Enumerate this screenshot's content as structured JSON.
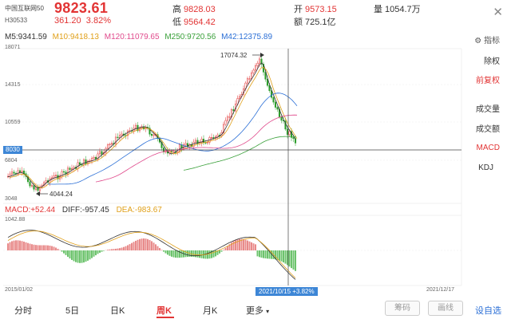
{
  "header": {
    "name": "中国互联网50",
    "code": "H30533",
    "price": "9823.61",
    "change": "361.20",
    "change_pct": "3.82%",
    "high_label": "高",
    "high": "9828.03",
    "low_label": "低",
    "low": "9564.42",
    "open_label": "开",
    "open": "9573.15",
    "amount_label": "额",
    "amount": "725.1亿",
    "volume_label": "量",
    "volume": "1054.7万"
  },
  "ma": {
    "m5": "M5:9341.59",
    "m10": "M10:9418.13",
    "m120": "M120:11079.65",
    "m250": "M250:9720.56",
    "m42": "M42:12375.89",
    "colors": {
      "m5": "#333333",
      "m10": "#e0a01a",
      "m120": "#e04a8c",
      "m250": "#3aa03a",
      "m42": "#2b6fd6"
    }
  },
  "price_axis": {
    "top": "18071",
    "t2": "14315",
    "t3": "10559",
    "t4": "6804",
    "bottom": "3048",
    "crosshair": "8030"
  },
  "annotations": {
    "high": "17074.32",
    "low": "4044.24"
  },
  "macd": {
    "macd": "MACD:+52.44",
    "diff": "DIFF:-957.45",
    "dea": "DEA:-983.67",
    "top": "1042.88",
    "bottom": "-1521.45"
  },
  "dates": {
    "start": "2015/01/02",
    "end": "2021/12/17",
    "crosshair": "2021/10/15  +3.82%"
  },
  "side": {
    "indicator": "指标",
    "items": [
      "除权",
      "前复权",
      "成交量",
      "成交额",
      "MACD",
      "KDJ"
    ]
  },
  "tabs": [
    "分时",
    "5日",
    "日K",
    "周K",
    "月K",
    "更多"
  ],
  "tabs_more_arrow": "▾",
  "buttons": {
    "chips": "筹码",
    "draw": "画线",
    "optional": "设自选"
  },
  "chart_data": {
    "type": "line",
    "price_range": [
      3048,
      18071
    ],
    "crosshair_price": 8030,
    "peak": 17074.32,
    "trough": 4044.24,
    "macd_range": [
      -1521.45,
      1042.88
    ]
  }
}
